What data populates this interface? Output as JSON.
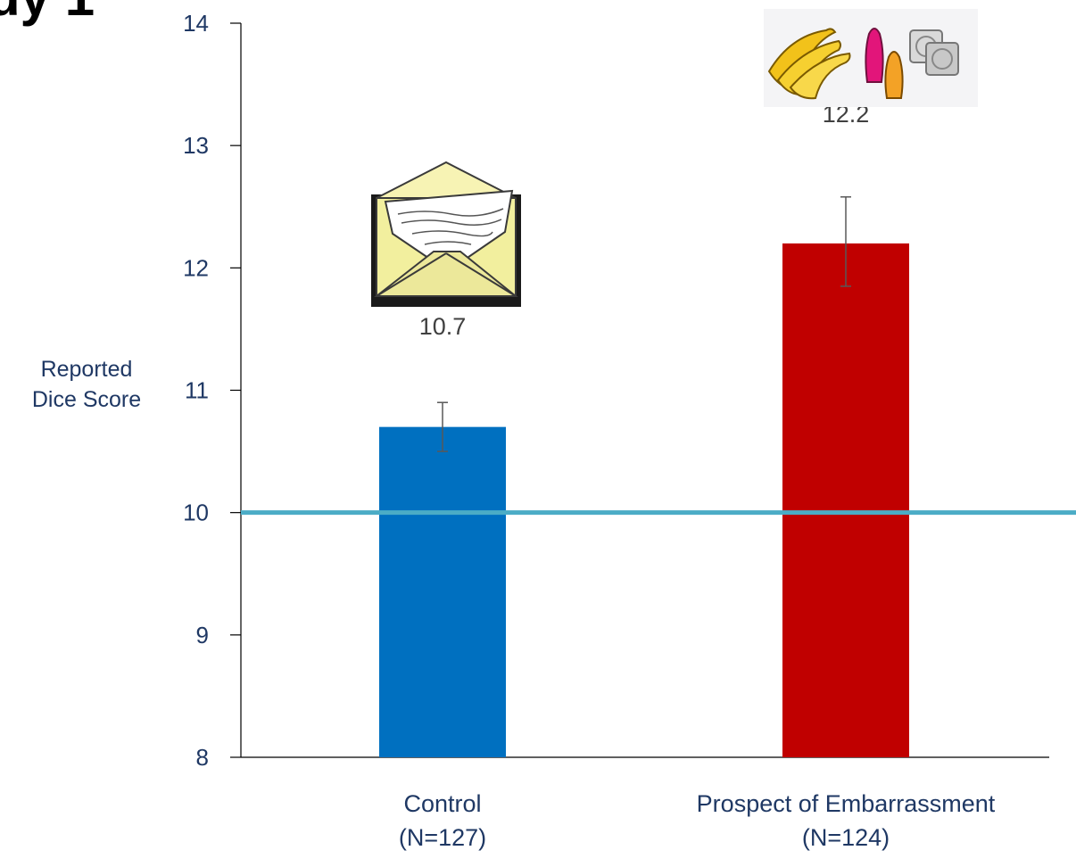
{
  "slide": {
    "title_fragment": "dy 1"
  },
  "chart_data": {
    "type": "bar",
    "categories": [
      {
        "name": "Control",
        "n": "(N=127)"
      },
      {
        "name": "Prospect of Embarrassment",
        "n": "(N=124)"
      }
    ],
    "values": [
      10.7,
      12.2
    ],
    "value_labels": [
      "10.7",
      "12.2"
    ],
    "error_bars": [
      [
        10.5,
        10.9
      ],
      [
        11.85,
        12.58
      ]
    ],
    "bar_colors": [
      "#0070c0",
      "#c00000"
    ],
    "ylabel_lines": [
      "Reported",
      "Dice Score"
    ],
    "ylim": [
      8,
      14
    ],
    "yticks": [
      8,
      9,
      10,
      11,
      12,
      13,
      14
    ],
    "reference_line": {
      "value": 10,
      "color": "#4bacc6"
    },
    "grid": false,
    "images": [
      "envelope-image",
      "bananas-condoms-image"
    ]
  }
}
